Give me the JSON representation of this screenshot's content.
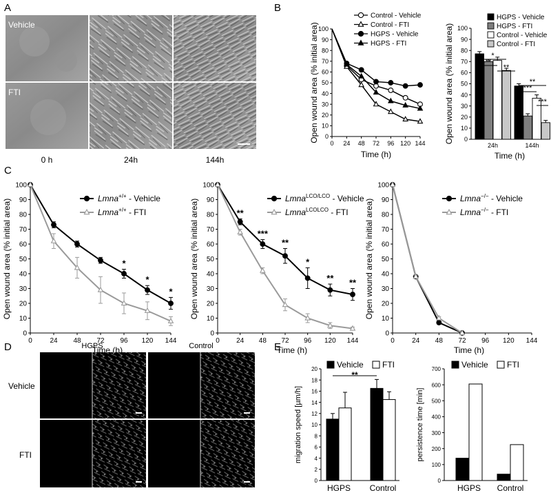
{
  "panels": {
    "A": {
      "label": "A",
      "rows": [
        "Vehicle",
        "FTI"
      ],
      "columns": [
        "0 h",
        "24h",
        "144h"
      ]
    },
    "B": {
      "label": "B",
      "line_chart": {
        "type": "line",
        "xlabel": "Time (h)",
        "ylabel": "Open wound area (% initial area)",
        "x": [
          0,
          24,
          48,
          72,
          96,
          120,
          144
        ],
        "xlim": [
          0,
          144
        ],
        "ylim": [
          0,
          100
        ],
        "yticks": [
          0,
          10,
          20,
          30,
          40,
          50,
          60,
          70,
          80,
          90,
          100
        ],
        "legend_position": "top-right",
        "series": [
          {
            "name": "Control - Vehicle",
            "marker": "open-circle",
            "values": [
              100,
              66,
              53,
              47,
              43,
              36,
              30
            ]
          },
          {
            "name": "Control - FTI",
            "marker": "open-triangle",
            "values": [
              100,
              65,
              48,
              30,
              23,
              16,
              14
            ]
          },
          {
            "name": "HGPS - Vehicle",
            "marker": "filled-circle",
            "values": [
              100,
              68,
              62,
              51,
              50,
              47,
              48
            ]
          },
          {
            "name": "HGPS - FTI",
            "marker": "filled-triangle",
            "values": [
              100,
              67,
              56,
              41,
              33,
              29,
              26
            ]
          }
        ]
      },
      "bar_chart": {
        "type": "bar",
        "xlabel": "Time (h)",
        "ylabel": "Open wound area (% initial area)",
        "categories": [
          "24h",
          "144h"
        ],
        "ylim": [
          0,
          100
        ],
        "yticks": [
          0,
          10,
          20,
          30,
          40,
          50,
          60,
          70,
          80,
          90,
          100
        ],
        "series": [
          {
            "name": "HGPS - Vehicle",
            "color": "#000000",
            "values": [
              77,
              48
            ],
            "errors": [
              2,
              2
            ]
          },
          {
            "name": "HGPS - FTI",
            "color": "#7f7f7f",
            "values": [
              70,
              21
            ],
            "errors": [
              2,
              2
            ]
          },
          {
            "name": "Control - Vehicle",
            "color": "#ffffff",
            "values": [
              71,
              37
            ],
            "errors": [
              3,
              3
            ]
          },
          {
            "name": "Control - FTI",
            "color": "#c8c8c8",
            "values": [
              62,
              15
            ],
            "errors": [
              2,
              2
            ]
          }
        ],
        "significance": [
          "*",
          "**",
          "**",
          "**",
          "***",
          "***"
        ]
      }
    },
    "C": {
      "label": "C",
      "charts": [
        {
          "type": "line",
          "xlabel": "Time (h)",
          "ylabel": "Open wound area (% initial area)",
          "x": [
            0,
            24,
            48,
            72,
            96,
            120,
            144
          ],
          "xlim": [
            0,
            144
          ],
          "ylim": [
            0,
            100
          ],
          "yticks": [
            0,
            10,
            20,
            30,
            40,
            50,
            60,
            70,
            80,
            90,
            100
          ],
          "legend_gene": "Lmna",
          "legend_sup": "+/+",
          "series": [
            {
              "name": "Lmna+/+ - Vehicle",
              "suffix": " - Vehicle",
              "values": [
                100,
                73,
                60,
                49,
                40,
                29,
                20
              ],
              "errors": [
                0,
                2,
                2,
                2,
                3,
                3,
                4
              ]
            },
            {
              "name": "Lmna+/+ - FTI",
              "suffix": " - FTI",
              "values": [
                100,
                62,
                44,
                29,
                20,
                15,
                8
              ],
              "errors": [
                0,
                5,
                7,
                9,
                7,
                6,
                3
              ]
            }
          ],
          "stars": [
            {
              "x": 96,
              "label": "*"
            },
            {
              "x": 120,
              "label": "*"
            },
            {
              "x": 144,
              "label": "*"
            }
          ]
        },
        {
          "type": "line",
          "xlabel": "Time (h)",
          "ylabel": "Open wound area (% initial area)",
          "x": [
            0,
            24,
            48,
            72,
            96,
            120,
            144
          ],
          "xlim": [
            0,
            144
          ],
          "ylim": [
            0,
            100
          ],
          "yticks": [
            0,
            10,
            20,
            30,
            40,
            50,
            60,
            70,
            80,
            90,
            100
          ],
          "legend_gene": "Lmna",
          "legend_sup": "LCO/LCO",
          "legend_sup2": "LCOLCO",
          "series": [
            {
              "name": "LmnaLCO/LCO - Vehicle",
              "suffix": " - Vehicle",
              "values": [
                100,
                75,
                60,
                52,
                37,
                29,
                26
              ],
              "errors": [
                0,
                2,
                3,
                5,
                7,
                4,
                4
              ]
            },
            {
              "name": "LmnaLCOLCO - FTI",
              "suffix": " - FTI",
              "values": [
                100,
                68,
                42,
                19,
                10,
                5,
                3
              ],
              "errors": [
                0,
                2,
                2,
                4,
                3,
                2,
                1
              ]
            }
          ],
          "stars": [
            {
              "x": 24,
              "label": "**"
            },
            {
              "x": 48,
              "label": "***"
            },
            {
              "x": 72,
              "label": "**"
            },
            {
              "x": 96,
              "label": "*"
            },
            {
              "x": 120,
              "label": "**"
            },
            {
              "x": 144,
              "label": "**"
            }
          ]
        },
        {
          "type": "line",
          "xlabel": "Time (h)",
          "ylabel": "Open wound area (% initial area)",
          "x": [
            0,
            24,
            48,
            72
          ],
          "xlim": [
            0,
            144
          ],
          "ylim": [
            0,
            100
          ],
          "yticks": [
            0,
            10,
            20,
            30,
            40,
            50,
            60,
            70,
            80,
            90,
            100
          ],
          "legend_gene": "Lmna",
          "legend_sup": "−/−",
          "series": [
            {
              "name": "Lmna−/− - Vehicle",
              "suffix": " - Vehicle",
              "values": [
                100,
                38,
                7,
                0
              ],
              "errors": [
                0,
                1,
                1,
                0
              ]
            },
            {
              "name": "Lmna−/− - FTI",
              "suffix": " - FTI",
              "values": [
                100,
                38,
                10,
                0
              ],
              "errors": [
                0,
                1,
                1,
                0
              ]
            }
          ],
          "stars": []
        }
      ]
    },
    "D": {
      "label": "D",
      "columns": [
        "HGPS",
        "Control"
      ],
      "rows": [
        "Vehicle",
        "FTI"
      ]
    },
    "E": {
      "label": "E",
      "speed_chart": {
        "type": "bar",
        "ylabel": "migration speed [µm/h]",
        "categories": [
          "HGPS",
          "Control"
        ],
        "ylim": [
          0,
          20
        ],
        "yticks": [
          0,
          2,
          4,
          6,
          8,
          10,
          12,
          14,
          16,
          18,
          20
        ],
        "series": [
          {
            "name": "Vehicle",
            "color": "#000000",
            "values": [
              11,
              16.5
            ],
            "errors": [
              1,
              1.6
            ]
          },
          {
            "name": "FTI",
            "color": "#ffffff",
            "values": [
              13,
              14.5
            ],
            "errors": [
              2.8,
              1.4
            ]
          }
        ],
        "significance": "**"
      },
      "persistence_chart": {
        "type": "bar",
        "ylabel": "persistence time [min]",
        "categories": [
          "HGPS",
          "Control"
        ],
        "ylim": [
          0,
          700
        ],
        "yticks": [
          0,
          100,
          200,
          300,
          400,
          500,
          600,
          700
        ],
        "series": [
          {
            "name": "Vehicle",
            "color": "#000000",
            "values": [
              140,
              40
            ]
          },
          {
            "name": "FTI",
            "color": "#ffffff",
            "values": [
              605,
              225
            ]
          }
        ]
      }
    }
  }
}
